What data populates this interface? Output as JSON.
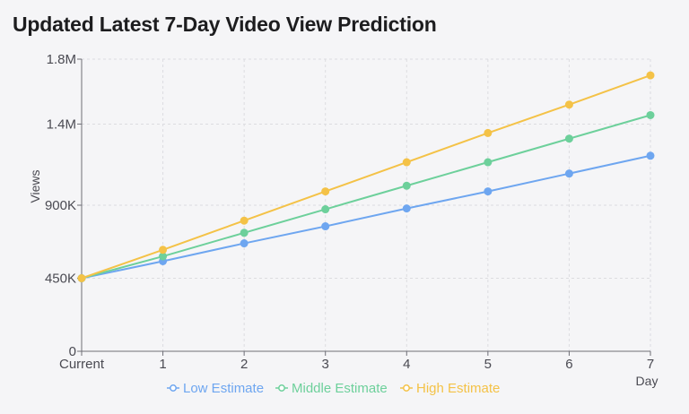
{
  "title": "Updated Latest 7-Day Video View Prediction",
  "chart_data": {
    "type": "line",
    "title": "Updated Latest 7-Day Video View Prediction",
    "xlabel": "Day",
    "ylabel": "Views",
    "categories": [
      "Current",
      "1",
      "2",
      "3",
      "4",
      "5",
      "6",
      "7"
    ],
    "ylim": [
      0,
      1800000
    ],
    "yticks": [
      0,
      450000,
      900000,
      1400000,
      1800000
    ],
    "ytick_labels": [
      "0",
      "450K",
      "900K",
      "1.4M",
      "1.8M"
    ],
    "grid": true,
    "legend_position": "bottom",
    "series": [
      {
        "name": "Low Estimate",
        "color": "#6ea6f0",
        "values": [
          450000,
          555000,
          665000,
          770000,
          880000,
          985000,
          1095000,
          1205000
        ]
      },
      {
        "name": "Middle Estimate",
        "color": "#6dd09b",
        "values": [
          450000,
          585000,
          730000,
          875000,
          1020000,
          1165000,
          1310000,
          1455000
        ]
      },
      {
        "name": "High Estimate",
        "color": "#f4c247",
        "values": [
          450000,
          625000,
          805000,
          985000,
          1165000,
          1345000,
          1520000,
          1700000
        ]
      }
    ]
  }
}
